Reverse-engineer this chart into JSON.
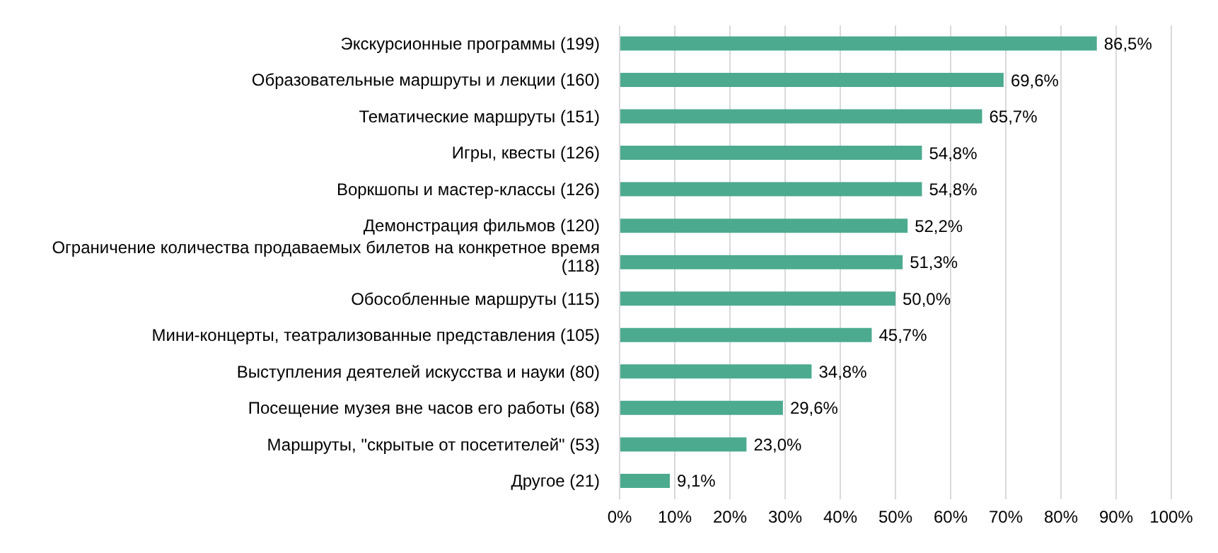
{
  "chart_data": {
    "type": "bar",
    "orientation": "horizontal",
    "color": "#4caa8f",
    "categories": [
      "Экскурсионные программы (199)",
      "Образовательные  маршруты и лекции (160)",
      "Тематические маршруты (151)",
      "Игры, квесты (126)",
      "Воркшопы и мастер-классы (126)",
      "Демонстрация фильмов (120)",
      "Ограничение количества продаваемых билетов на конкретное время (118)",
      "Обособленные  маршруты (115)",
      "Мини-концерты, театрализованные представления (105)",
      "Выступления деятелей искусства и науки (80)",
      "Посещение  музея вне часов его работы (68)",
      "Маршруты, \"скрытые от посетителей\" (53)",
      "Другое (21)"
    ],
    "values": [
      86.5,
      69.6,
      65.7,
      54.8,
      54.8,
      52.2,
      51.3,
      50.0,
      45.7,
      34.8,
      29.6,
      23.0,
      9.1
    ],
    "value_labels": [
      "86,5%",
      "69,6%",
      "65,7%",
      "54,8%",
      "54,8%",
      "52,2%",
      "51,3%",
      "50,0%",
      "45,7%",
      "34,8%",
      "29,6%",
      "23,0%",
      "9,1%"
    ],
    "xlim": [
      0,
      100
    ],
    "xticks": [
      {
        "value": 0,
        "label": "0%"
      },
      {
        "value": 10,
        "label": "10%"
      },
      {
        "value": 20,
        "label": "20%"
      },
      {
        "value": 30,
        "label": "30%"
      },
      {
        "value": 40,
        "label": "40%"
      },
      {
        "value": 50,
        "label": "50%"
      },
      {
        "value": 60,
        "label": "60%"
      },
      {
        "value": 70,
        "label": "70%"
      },
      {
        "value": 80,
        "label": "80%"
      },
      {
        "value": 90,
        "label": "90%"
      },
      {
        "value": 100,
        "label": "100%"
      }
    ],
    "grid": "x"
  }
}
